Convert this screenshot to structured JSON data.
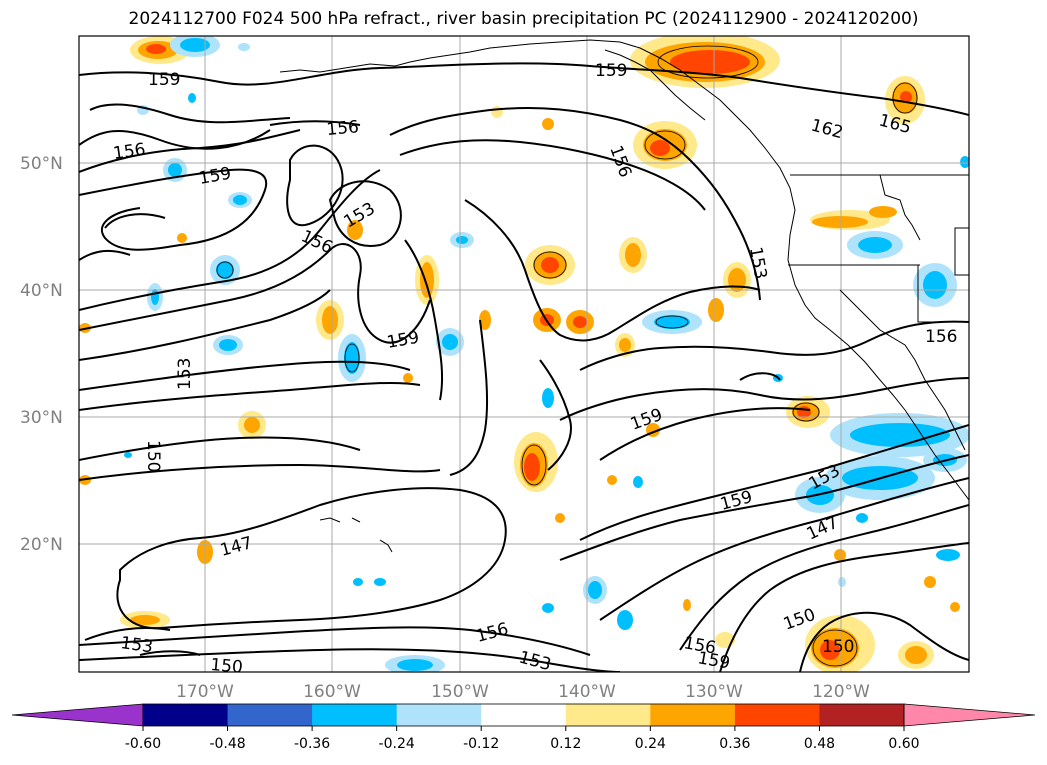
{
  "title": "2024112700 F024 500 hPa refract., river basin precipitation PC (2024112900 - 2024120200)",
  "latitude_labels": [
    "50°N",
    "40°N",
    "30°N",
    "20°N"
  ],
  "longitude_labels": [
    "170°W",
    "160°W",
    "150°W",
    "140°W",
    "130°W",
    "120°W"
  ],
  "contour_labels": [
    "159",
    "156",
    "159",
    "156",
    "153",
    "156",
    "153",
    "150",
    "147",
    "153",
    "150",
    "159",
    "156",
    "153",
    "156",
    "159",
    "162",
    "165",
    "153",
    "156",
    "159",
    "159",
    "153",
    "147",
    "150",
    "150",
    "156",
    "159"
  ],
  "colorbar": {
    "tick_labels": [
      "-0.60",
      "-0.48",
      "-0.36",
      "-0.24",
      "-0.12",
      "0.12",
      "0.24",
      "0.36",
      "0.48",
      "0.60"
    ],
    "colors": [
      "#9933cc",
      "#00008b",
      "#3366cc",
      "#00bfff",
      "#aee3fb",
      "#ffffff",
      "#ffe98a",
      "#ffa500",
      "#ff4500",
      "#b22222",
      "#ff88aa"
    ]
  }
}
